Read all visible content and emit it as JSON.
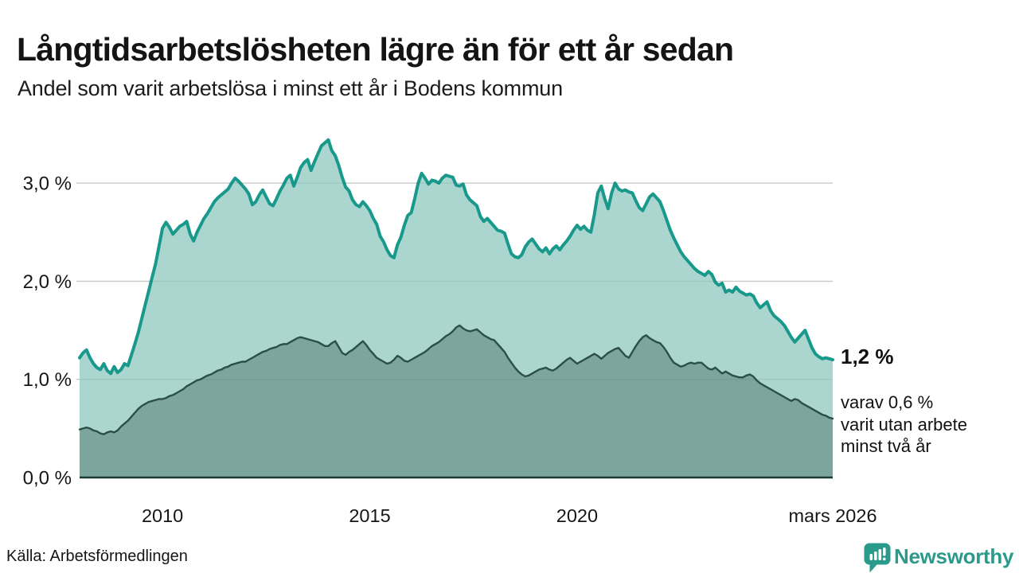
{
  "header": {
    "title": "Långtidsarbetslösheten lägre än för ett år sedan",
    "subtitle": "Andel som varit arbetslösa i minst ett år i Bodens kommun"
  },
  "chart_data": {
    "type": "area",
    "x_range": [
      2008.0,
      2026.1667
    ],
    "x_step_months": 1,
    "ylim": [
      0,
      3.55
    ],
    "grid": "horizontal",
    "legend_position": "none",
    "yticks": [
      {
        "value": 0,
        "label": "0,0 %"
      },
      {
        "value": 1,
        "label": "1,0 %"
      },
      {
        "value": 2,
        "label": "2,0 %"
      },
      {
        "value": 3,
        "label": "3,0 %"
      }
    ],
    "xticks": [
      {
        "year": 2010,
        "label": "2010"
      },
      {
        "year": 2015,
        "label": "2015"
      },
      {
        "year": 2020,
        "label": "2020"
      },
      {
        "year": 2026.1667,
        "label": "mars 2026"
      }
    ],
    "series": [
      {
        "name": "Andel som varit arbetslösa i minst ett år",
        "color": "#18998b",
        "fill": "#abd6cf",
        "values": [
          1.22,
          1.27,
          1.3,
          1.22,
          1.16,
          1.12,
          1.1,
          1.16,
          1.09,
          1.06,
          1.13,
          1.07,
          1.1,
          1.16,
          1.14,
          1.25,
          1.36,
          1.48,
          1.62,
          1.76,
          1.9,
          2.04,
          2.18,
          2.36,
          2.54,
          2.6,
          2.55,
          2.48,
          2.52,
          2.56,
          2.58,
          2.61,
          2.48,
          2.41,
          2.5,
          2.57,
          2.64,
          2.69,
          2.75,
          2.81,
          2.85,
          2.88,
          2.91,
          2.94,
          3.0,
          3.05,
          3.02,
          2.98,
          2.94,
          2.89,
          2.78,
          2.81,
          2.88,
          2.93,
          2.86,
          2.79,
          2.77,
          2.84,
          2.92,
          2.98,
          3.05,
          3.08,
          2.97,
          3.06,
          3.16,
          3.21,
          3.24,
          3.13,
          3.22,
          3.3,
          3.38,
          3.41,
          3.44,
          3.33,
          3.28,
          3.18,
          3.06,
          2.96,
          2.92,
          2.83,
          2.78,
          2.76,
          2.81,
          2.77,
          2.72,
          2.64,
          2.58,
          2.46,
          2.4,
          2.32,
          2.26,
          2.24,
          2.37,
          2.45,
          2.57,
          2.67,
          2.7,
          2.84,
          3.0,
          3.1,
          3.05,
          2.99,
          3.03,
          3.02,
          3.0,
          3.05,
          3.08,
          3.07,
          3.06,
          2.98,
          2.97,
          2.99,
          2.88,
          2.83,
          2.8,
          2.77,
          2.66,
          2.61,
          2.64,
          2.6,
          2.56,
          2.52,
          2.51,
          2.49,
          2.38,
          2.28,
          2.25,
          2.24,
          2.27,
          2.35,
          2.4,
          2.43,
          2.38,
          2.33,
          2.3,
          2.34,
          2.28,
          2.33,
          2.36,
          2.32,
          2.37,
          2.41,
          2.46,
          2.52,
          2.57,
          2.53,
          2.56,
          2.52,
          2.5,
          2.68,
          2.9,
          2.97,
          2.84,
          2.74,
          2.9,
          3.0,
          2.94,
          2.92,
          2.93,
          2.91,
          2.9,
          2.82,
          2.75,
          2.72,
          2.79,
          2.86,
          2.89,
          2.85,
          2.81,
          2.72,
          2.62,
          2.52,
          2.44,
          2.37,
          2.3,
          2.25,
          2.21,
          2.17,
          2.13,
          2.1,
          2.08,
          2.06,
          2.1,
          2.07,
          1.99,
          1.96,
          1.98,
          1.89,
          1.91,
          1.89,
          1.94,
          1.9,
          1.88,
          1.86,
          1.87,
          1.85,
          1.78,
          1.73,
          1.76,
          1.79,
          1.7,
          1.65,
          1.62,
          1.59,
          1.55,
          1.49,
          1.43,
          1.38,
          1.42,
          1.46,
          1.5,
          1.41,
          1.32,
          1.26,
          1.23,
          1.21,
          1.22,
          1.21,
          1.2
        ]
      },
      {
        "name": "varav varit utan arbete minst två år",
        "color": "#2b4f48",
        "fill": "#7ca69d",
        "values": [
          0.49,
          0.5,
          0.51,
          0.5,
          0.48,
          0.47,
          0.45,
          0.44,
          0.46,
          0.47,
          0.46,
          0.48,
          0.52,
          0.55,
          0.58,
          0.62,
          0.66,
          0.7,
          0.73,
          0.75,
          0.77,
          0.78,
          0.79,
          0.8,
          0.8,
          0.81,
          0.83,
          0.84,
          0.86,
          0.88,
          0.9,
          0.93,
          0.95,
          0.97,
          0.99,
          1.0,
          1.02,
          1.04,
          1.05,
          1.07,
          1.09,
          1.1,
          1.12,
          1.13,
          1.15,
          1.16,
          1.17,
          1.18,
          1.18,
          1.2,
          1.22,
          1.24,
          1.26,
          1.28,
          1.29,
          1.31,
          1.32,
          1.33,
          1.35,
          1.36,
          1.36,
          1.38,
          1.4,
          1.42,
          1.43,
          1.42,
          1.41,
          1.4,
          1.39,
          1.38,
          1.36,
          1.34,
          1.34,
          1.37,
          1.39,
          1.33,
          1.27,
          1.25,
          1.28,
          1.3,
          1.33,
          1.36,
          1.39,
          1.35,
          1.3,
          1.26,
          1.22,
          1.2,
          1.18,
          1.16,
          1.17,
          1.2,
          1.24,
          1.22,
          1.19,
          1.18,
          1.2,
          1.22,
          1.24,
          1.26,
          1.28,
          1.31,
          1.34,
          1.36,
          1.38,
          1.41,
          1.44,
          1.46,
          1.49,
          1.53,
          1.55,
          1.52,
          1.5,
          1.49,
          1.5,
          1.51,
          1.48,
          1.45,
          1.43,
          1.41,
          1.4,
          1.36,
          1.32,
          1.28,
          1.22,
          1.17,
          1.12,
          1.08,
          1.05,
          1.03,
          1.04,
          1.06,
          1.08,
          1.1,
          1.11,
          1.12,
          1.1,
          1.09,
          1.11,
          1.14,
          1.17,
          1.2,
          1.22,
          1.19,
          1.16,
          1.18,
          1.2,
          1.22,
          1.24,
          1.26,
          1.24,
          1.21,
          1.24,
          1.27,
          1.29,
          1.31,
          1.32,
          1.28,
          1.24,
          1.22,
          1.28,
          1.34,
          1.39,
          1.43,
          1.45,
          1.42,
          1.4,
          1.38,
          1.37,
          1.33,
          1.28,
          1.22,
          1.17,
          1.15,
          1.13,
          1.14,
          1.16,
          1.17,
          1.16,
          1.17,
          1.17,
          1.14,
          1.11,
          1.1,
          1.12,
          1.09,
          1.06,
          1.08,
          1.06,
          1.04,
          1.03,
          1.02,
          1.02,
          1.04,
          1.05,
          1.03,
          0.99,
          0.96,
          0.94,
          0.92,
          0.9,
          0.88,
          0.86,
          0.84,
          0.82,
          0.8,
          0.78,
          0.8,
          0.79,
          0.76,
          0.74,
          0.72,
          0.7,
          0.68,
          0.66,
          0.64,
          0.63,
          0.61,
          0.6
        ]
      }
    ],
    "end_labels": {
      "primary": "1,2 %",
      "secondary_lines": [
        "varav 0,6 %",
        "varit utan arbete",
        "minst två år"
      ]
    }
  },
  "footer": {
    "source": "Källa: Arbetsförmedlingen",
    "brand": "Newsworthy",
    "brand_color": "#2a9a8b"
  }
}
